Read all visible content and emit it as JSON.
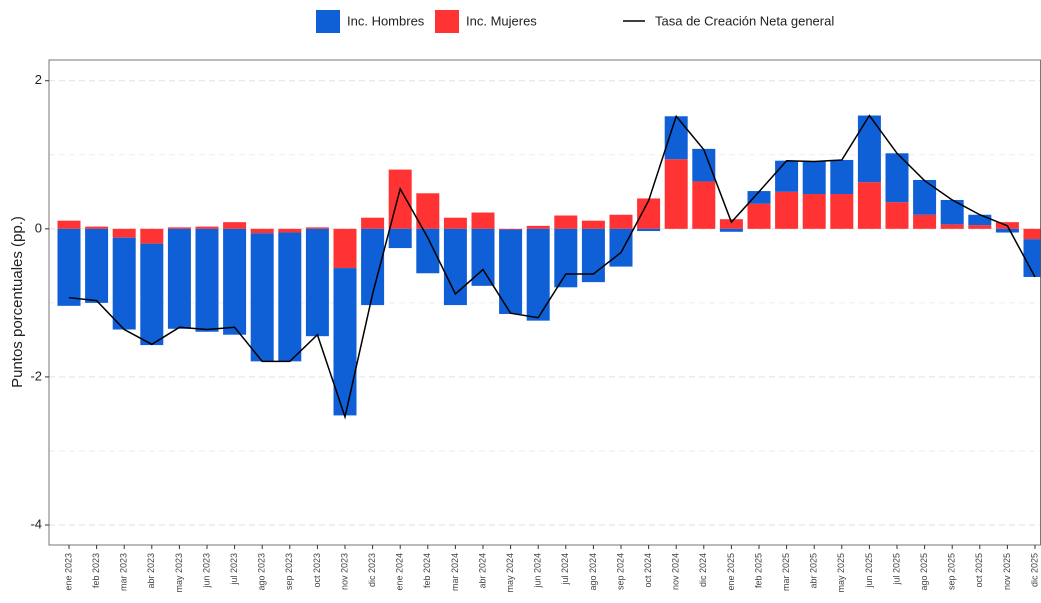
{
  "chart_data": {
    "type": "bar",
    "stacked": true,
    "y_label": "Puntos porcentuales (pp.)",
    "categories": [
      "ene 2023",
      "feb 2023",
      "mar 2023",
      "abr 2023",
      "may 2023",
      "jun 2023",
      "jul 2023",
      "ago 2023",
      "sep 2023",
      "oct 2023",
      "nov 2023",
      "dic 2023",
      "ene 2024",
      "feb 2024",
      "mar 2024",
      "abr 2024",
      "may 2024",
      "jun 2024",
      "jul 2024",
      "ago 2024",
      "sep 2024",
      "oct 2024",
      "nov 2024",
      "dic 2024",
      "ene 2025",
      "feb 2025",
      "mar 2025",
      "abr 2025",
      "may 2025",
      "jun 2025",
      "jul 2025",
      "ago 2025",
      "sep 2025",
      "oct 2025",
      "nov 2025",
      "dic 2025"
    ],
    "series": [
      {
        "name": "Inc. Hombres",
        "color": "#0f5fd6",
        "values": [
          -1.04,
          -1.0,
          -1.24,
          -1.37,
          -1.35,
          -1.39,
          -1.43,
          -1.73,
          -1.74,
          -1.45,
          -1.99,
          -1.03,
          -0.26,
          -0.6,
          -1.03,
          -0.77,
          -1.14,
          -1.24,
          -0.79,
          -0.72,
          -0.51,
          -0.03,
          0.58,
          0.44,
          -0.04,
          0.17,
          0.42,
          0.44,
          0.46,
          0.9,
          0.66,
          0.47,
          0.33,
          0.14,
          -0.05,
          -0.51
        ]
      },
      {
        "name": "Inc. Mujeres",
        "color": "#ff3333",
        "values": [
          0.11,
          0.03,
          -0.12,
          -0.2,
          0.02,
          0.03,
          0.09,
          -0.06,
          -0.05,
          0.02,
          -0.53,
          0.15,
          0.8,
          0.48,
          0.15,
          0.22,
          -0.01,
          0.04,
          0.18,
          0.11,
          0.19,
          0.41,
          0.94,
          0.64,
          0.13,
          0.34,
          0.5,
          0.47,
          0.47,
          0.63,
          0.36,
          0.19,
          0.06,
          0.05,
          0.09,
          -0.14
        ]
      }
    ],
    "line": {
      "name": "Tasa de Creación Neta general",
      "color": "#000000",
      "values": [
        -0.93,
        -0.97,
        -1.36,
        -1.56,
        -1.33,
        -1.36,
        -1.33,
        -1.79,
        -1.79,
        -1.43,
        -2.54,
        -0.88,
        0.54,
        -0.12,
        -0.88,
        -0.55,
        -1.14,
        -1.2,
        -0.61,
        -0.61,
        -0.32,
        0.38,
        1.52,
        1.07,
        0.09,
        0.5,
        0.92,
        0.91,
        0.93,
        1.53,
        1.02,
        0.65,
        0.39,
        0.19,
        0.04,
        -0.65
      ]
    },
    "ylim": [
      -4.27,
      2.28
    ],
    "yticks": [
      -4,
      -2,
      0,
      2
    ],
    "y_minor_ticks": [
      -3,
      -1,
      1
    ],
    "grid": true,
    "legend": "top"
  }
}
